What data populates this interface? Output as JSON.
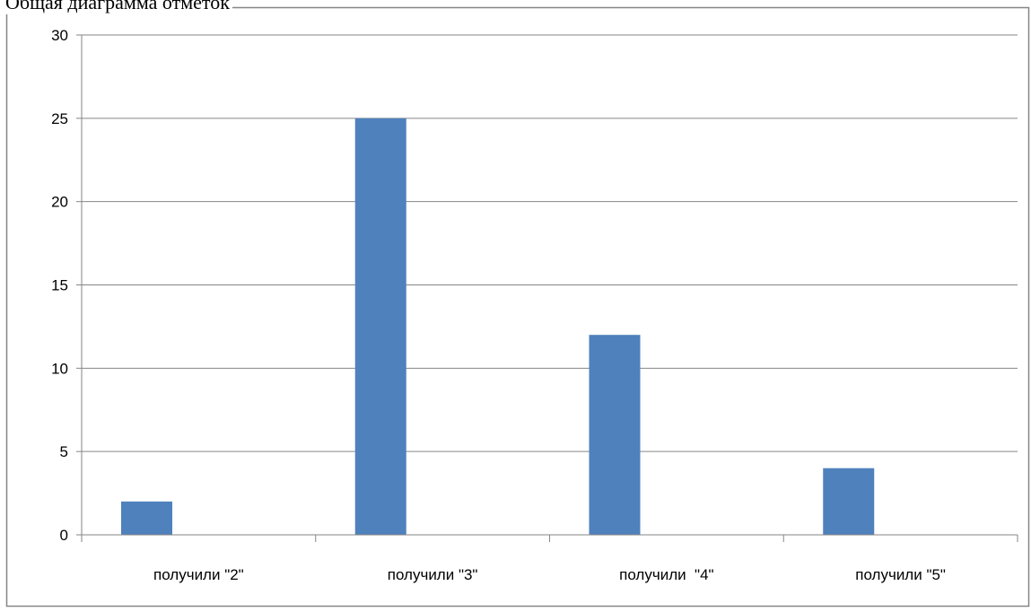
{
  "chart_data": {
    "type": "bar",
    "title": "Общая диаграмма отметок",
    "categories": [
      "получили \"2\"",
      "получили \"3\"",
      "получили  \"4\"",
      "получили \"5\""
    ],
    "series": [
      {
        "values": [
          2,
          25,
          12,
          4
        ]
      }
    ],
    "ylim": [
      0,
      30
    ],
    "yticks": [
      0,
      5,
      10,
      15,
      20,
      25,
      30
    ],
    "grid": true,
    "legend": "none",
    "bar_color": "#4F81BD"
  }
}
